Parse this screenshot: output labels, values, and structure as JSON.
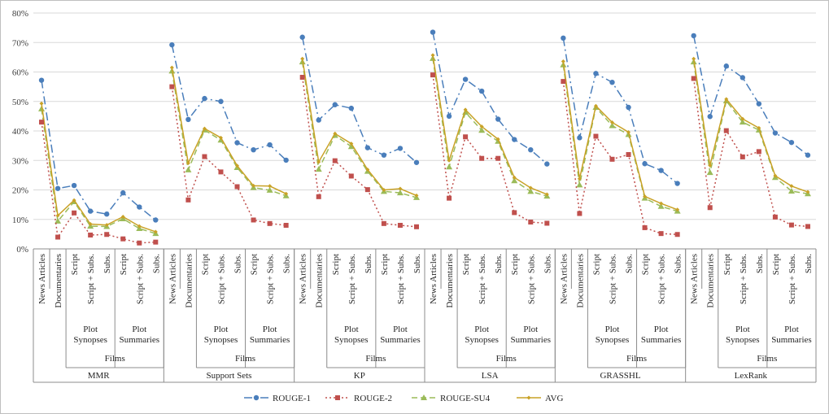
{
  "chart_data": {
    "type": "line",
    "title": "",
    "xlabel": "",
    "ylabel": "",
    "ylim": [
      0,
      80
    ],
    "ytick_values": [
      0,
      10,
      20,
      30,
      40,
      50,
      60,
      70,
      80
    ],
    "ytick_labels": [
      "0%",
      "10%",
      "20%",
      "30%",
      "40%",
      "50%",
      "60%",
      "70%",
      "80%"
    ],
    "grid": true,
    "legend_position": "bottom",
    "categories": [
      "News Articles",
      "Documentaries",
      "Script",
      "Script + Subs.",
      "Subs.",
      "Script",
      "Script + Subs.",
      "Subs."
    ],
    "subgroups": [
      {
        "label": "Plot Synopses",
        "start": 2,
        "end": 4
      },
      {
        "label": "Plot Summaries",
        "start": 5,
        "end": 7
      }
    ],
    "films_label": "Films",
    "groups": [
      {
        "name": "MMR",
        "series": [
          {
            "name": "ROUGE-1",
            "values": [
              57.2,
              20.5,
              21.5,
              12.8,
              11.8,
              19.0,
              14.2,
              9.8
            ]
          },
          {
            "name": "ROUGE-2",
            "values": [
              43.0,
              4.0,
              12.2,
              4.7,
              4.9,
              3.4,
              2.0,
              2.3
            ]
          },
          {
            "name": "ROUGE-SU4",
            "values": [
              47.5,
              9.4,
              16.0,
              7.7,
              7.6,
              10.2,
              6.9,
              5.2
            ]
          },
          {
            "name": "AVG",
            "values": [
              49.3,
              11.3,
              16.5,
              8.4,
              8.1,
              10.9,
              7.7,
              5.8
            ]
          }
        ]
      },
      {
        "name": "Support Sets",
        "series": [
          {
            "name": "ROUGE-1",
            "values": [
              69.2,
              43.9,
              51.0,
              50.0,
              36.0,
              33.6,
              35.3,
              30.1
            ]
          },
          {
            "name": "ROUGE-2",
            "values": [
              55.0,
              16.6,
              31.3,
              26.1,
              21.1,
              9.8,
              8.6,
              8.0
            ]
          },
          {
            "name": "ROUGE-SU4",
            "values": [
              60.3,
              26.8,
              40.3,
              36.9,
              27.6,
              20.8,
              19.9,
              18.0
            ]
          },
          {
            "name": "AVG",
            "values": [
              61.5,
              29.1,
              40.8,
              37.7,
              28.2,
              21.4,
              21.3,
              18.7
            ]
          }
        ]
      },
      {
        "name": "KP",
        "series": [
          {
            "name": "ROUGE-1",
            "values": [
              71.8,
              43.7,
              48.9,
              47.7,
              34.3,
              31.8,
              34.1,
              29.3
            ]
          },
          {
            "name": "ROUGE-2",
            "values": [
              58.2,
              17.7,
              29.9,
              24.7,
              20.1,
              8.6,
              8.0,
              7.5
            ]
          },
          {
            "name": "ROUGE-SU4",
            "values": [
              63.4,
              27.0,
              38.5,
              34.7,
              26.3,
              19.5,
              19.0,
              17.4
            ]
          },
          {
            "name": "AVG",
            "values": [
              64.5,
              29.5,
              39.1,
              35.7,
              26.9,
              20.0,
              20.4,
              18.1
            ]
          }
        ]
      },
      {
        "name": "LSA",
        "series": [
          {
            "name": "ROUGE-1",
            "values": [
              73.5,
              45.0,
              57.5,
              53.5,
              44.0,
              37.1,
              33.6,
              28.8
            ]
          },
          {
            "name": "ROUGE-2",
            "values": [
              59.0,
              17.2,
              38.0,
              30.7,
              30.7,
              12.3,
              9.1,
              8.7
            ]
          },
          {
            "name": "ROUGE-SU4",
            "values": [
              64.6,
              27.8,
              46.3,
              40.2,
              36.5,
              23.1,
              19.5,
              17.9
            ]
          },
          {
            "name": "AVG",
            "values": [
              65.7,
              30.0,
              47.2,
              41.5,
              37.2,
              24.2,
              20.7,
              18.5
            ]
          }
        ]
      },
      {
        "name": "GRASSHL",
        "series": [
          {
            "name": "ROUGE-1",
            "values": [
              71.5,
              37.7,
              59.5,
              56.5,
              48.0,
              28.9,
              26.6,
              22.2
            ]
          },
          {
            "name": "ROUGE-2",
            "values": [
              56.8,
              12.0,
              38.2,
              30.4,
              32.0,
              7.2,
              5.2,
              4.9
            ]
          },
          {
            "name": "ROUGE-SU4",
            "values": [
              62.4,
              21.7,
              48.0,
              41.8,
              38.8,
              17.2,
              14.4,
              12.8
            ]
          },
          {
            "name": "AVG",
            "values": [
              63.6,
              23.8,
              48.5,
              42.9,
              39.6,
              17.8,
              15.4,
              13.3
            ]
          }
        ]
      },
      {
        "name": "LexRank",
        "series": [
          {
            "name": "ROUGE-1",
            "values": [
              72.3,
              44.9,
              62.0,
              58.1,
              49.2,
              39.3,
              36.1,
              31.8
            ]
          },
          {
            "name": "ROUGE-2",
            "values": [
              57.8,
              14.0,
              40.1,
              31.2,
              33.0,
              10.8,
              8.1,
              7.6
            ]
          },
          {
            "name": "ROUGE-SU4",
            "values": [
              63.4,
              25.9,
              50.2,
              43.0,
              40.3,
              24.2,
              19.6,
              18.7
            ]
          },
          {
            "name": "AVG",
            "values": [
              64.5,
              28.3,
              50.8,
              44.1,
              41.0,
              24.8,
              21.3,
              19.3
            ]
          }
        ]
      }
    ],
    "legend": [
      "ROUGE-1",
      "ROUGE-2",
      "ROUGE-SU4",
      "AVG"
    ]
  },
  "styles": {
    "ROUGE-1": {
      "color": "#4a7ebb",
      "dash": "10 4 2 4",
      "marker": "circle"
    },
    "ROUGE-2": {
      "color": "#c0504d",
      "dash": "2 3",
      "marker": "square"
    },
    "ROUGE-SU4": {
      "color": "#9bbb59",
      "dash": "7 4",
      "marker": "triangle"
    },
    "AVG": {
      "color": "#c9a227",
      "dash": "",
      "marker": "diamond"
    }
  }
}
